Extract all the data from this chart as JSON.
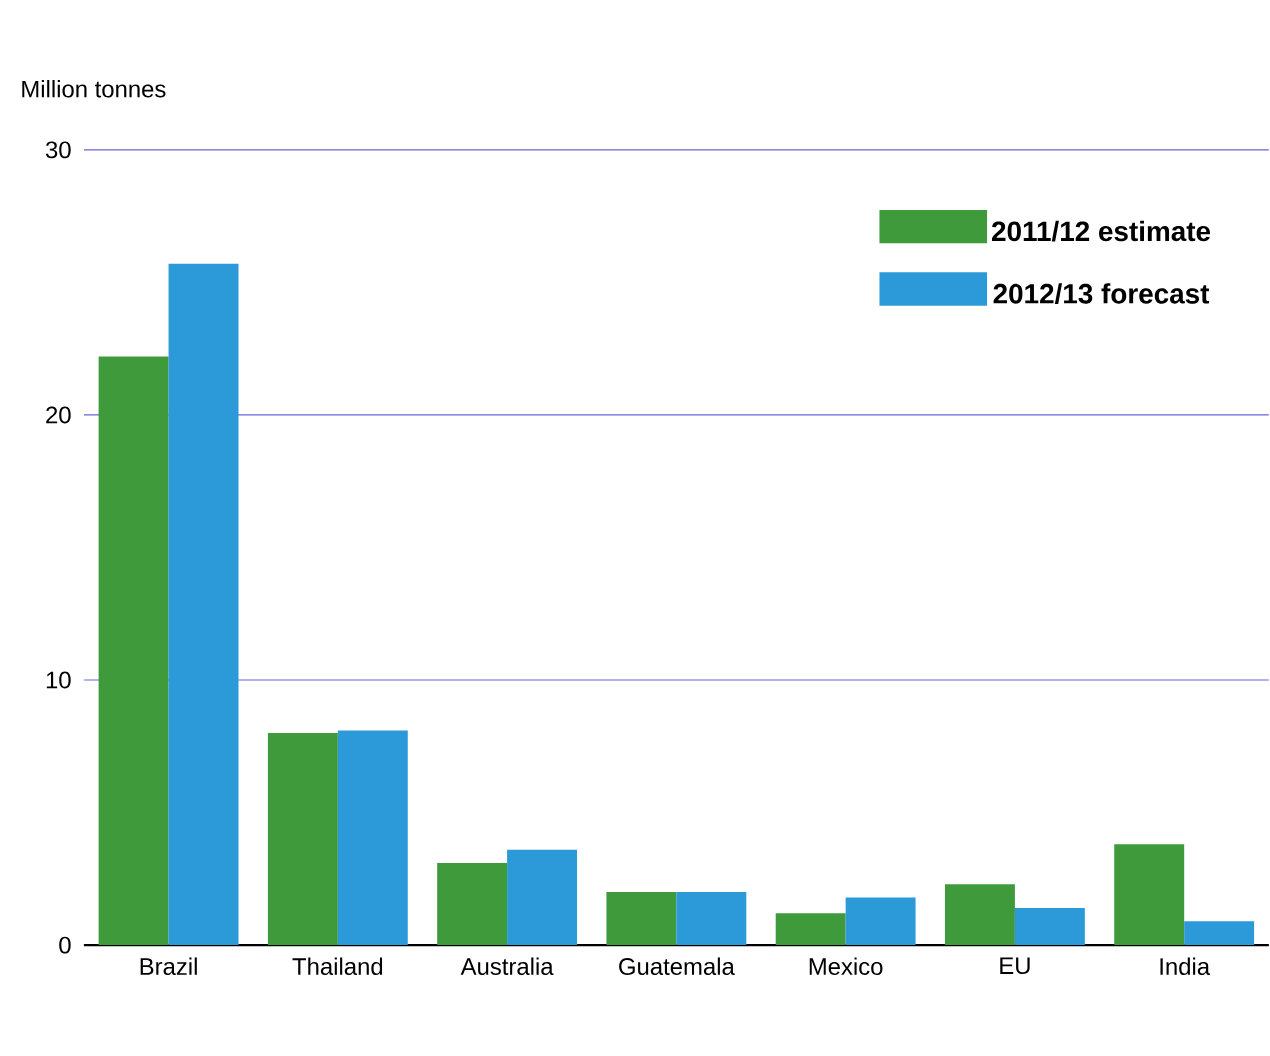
{
  "chart_data": {
    "type": "bar",
    "ylabel": "Million tonnes",
    "categories": [
      "Brazil",
      "Thailand",
      "Australia",
      "Guatemala",
      "Mexico",
      "EU",
      "India"
    ],
    "series": [
      {
        "name": "2011/12 estimate",
        "color": "#3f9a3c",
        "values": [
          22.2,
          8.0,
          3.1,
          2.0,
          1.2,
          2.3,
          3.8
        ]
      },
      {
        "name": "2012/13 forecast",
        "color": "#2c9ad8",
        "values": [
          25.7,
          8.1,
          3.6,
          2.0,
          1.8,
          1.4,
          0.9
        ]
      }
    ],
    "ylim": [
      0,
      30
    ],
    "yticks": [
      0,
      10,
      20,
      30
    ],
    "grid": "y",
    "legend": "top right"
  }
}
